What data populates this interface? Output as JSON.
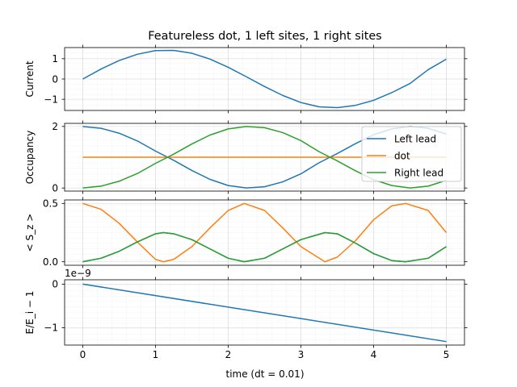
{
  "chart_data": {
    "type": "line",
    "title": "Featureless dot, 1 left sites, 1 right sites",
    "xlabel": "time (dt = 0.01)",
    "xlim": [
      -0.25,
      5.25
    ],
    "xticks": [
      0,
      1,
      2,
      3,
      4,
      5
    ],
    "xtick_labels": [
      "0",
      "1",
      "2",
      "3",
      "4",
      "5"
    ],
    "grid": true,
    "panels": [
      {
        "ylabel": "Current",
        "ylim": [
          -1.55,
          1.55
        ],
        "yticks": [
          -1,
          0,
          1
        ],
        "ytick_labels": [
          "−1",
          "0",
          "1"
        ],
        "series": [
          {
            "color": "#1f77b4",
            "x": [
              0,
              0.25,
              0.5,
              0.75,
              1.0,
              1.25,
              1.5,
              1.75,
              2.0,
              2.25,
              2.5,
              2.75,
              3.0,
              3.25,
              3.5,
              3.75,
              4.0,
              4.25,
              4.5,
              4.75,
              5.0
            ],
            "y": [
              0,
              0.49,
              0.91,
              1.22,
              1.4,
              1.41,
              1.27,
              0.98,
              0.58,
              0.11,
              -0.37,
              -0.81,
              -1.16,
              -1.37,
              -1.41,
              -1.3,
              -1.05,
              -0.67,
              -0.22,
              0.46,
              0.98
            ]
          }
        ]
      },
      {
        "ylabel": "Occupancy",
        "ylim": [
          -0.1,
          2.1
        ],
        "yticks": [
          0,
          2
        ],
        "ytick_labels": [
          "0",
          "2"
        ],
        "legend": "upper right",
        "series": [
          {
            "name": "Left lead",
            "color": "#1f77b4",
            "x": [
              0,
              0.25,
              0.5,
              0.75,
              1.0,
              1.25,
              1.5,
              1.75,
              2.0,
              2.25,
              2.5,
              2.75,
              3.0,
              3.25,
              3.5,
              3.75,
              4.0,
              4.25,
              4.5,
              4.75,
              5.0
            ],
            "y": [
              2.0,
              1.94,
              1.78,
              1.53,
              1.2,
              0.9,
              0.57,
              0.28,
              0.08,
              0.0,
              0.04,
              0.2,
              0.46,
              0.82,
              1.12,
              1.44,
              1.73,
              1.92,
              2.0,
              1.94,
              1.75
            ]
          },
          {
            "name": "dot",
            "color": "#ff7f0e",
            "x": [
              0,
              5.0
            ],
            "y": [
              1.0,
              1.0
            ]
          },
          {
            "name": "Right lead",
            "color": "#2ca02c",
            "x": [
              0,
              0.25,
              0.5,
              0.75,
              1.0,
              1.25,
              1.5,
              1.75,
              2.0,
              2.25,
              2.5,
              2.75,
              3.0,
              3.25,
              3.5,
              3.75,
              4.0,
              4.25,
              4.5,
              4.75,
              5.0
            ],
            "y": [
              0.0,
              0.06,
              0.22,
              0.47,
              0.8,
              1.1,
              1.43,
              1.72,
              1.92,
              2.0,
              1.96,
              1.8,
              1.54,
              1.18,
              0.88,
              0.56,
              0.27,
              0.08,
              0.0,
              0.06,
              0.25
            ]
          }
        ]
      },
      {
        "ylabel": "< S_z >",
        "ylim": [
          -0.03,
          0.53
        ],
        "yticks": [
          0.0,
          0.5
        ],
        "ytick_labels": [
          "0.0",
          "0.5"
        ],
        "series": [
          {
            "color": "#ff7f0e",
            "x": [
              0,
              0.25,
              0.5,
              0.75,
              1.0,
              1.11,
              1.25,
              1.5,
              1.75,
              2.0,
              2.22,
              2.5,
              2.75,
              3.0,
              3.33,
              3.5,
              3.75,
              4.0,
              4.25,
              4.44,
              4.75,
              5.0
            ],
            "y": [
              0.5,
              0.45,
              0.33,
              0.17,
              0.02,
              0.0,
              0.02,
              0.13,
              0.29,
              0.44,
              0.5,
              0.44,
              0.29,
              0.13,
              0.0,
              0.04,
              0.18,
              0.36,
              0.48,
              0.5,
              0.44,
              0.25
            ]
          },
          {
            "color": "#1f77b4",
            "x": [
              0,
              0.25,
              0.5,
              0.75,
              1.0,
              1.11,
              1.25,
              1.5,
              1.75,
              2.0,
              2.22,
              2.5,
              2.75,
              3.0,
              3.33,
              3.5,
              3.75,
              4.0,
              4.25,
              4.44,
              4.75,
              5.0
            ],
            "y": [
              0.0,
              0.03,
              0.09,
              0.17,
              0.24,
              0.25,
              0.24,
              0.19,
              0.11,
              0.03,
              0.0,
              0.03,
              0.11,
              0.19,
              0.25,
              0.24,
              0.16,
              0.07,
              0.01,
              0.0,
              0.03,
              0.13
            ]
          },
          {
            "color": "#2ca02c",
            "x": [
              0,
              0.25,
              0.5,
              0.75,
              1.0,
              1.11,
              1.25,
              1.5,
              1.75,
              2.0,
              2.22,
              2.5,
              2.75,
              3.0,
              3.33,
              3.5,
              3.75,
              4.0,
              4.25,
              4.44,
              4.75,
              5.0
            ],
            "y": [
              0.0,
              0.03,
              0.09,
              0.17,
              0.24,
              0.25,
              0.24,
              0.19,
              0.11,
              0.03,
              0.0,
              0.03,
              0.11,
              0.19,
              0.25,
              0.24,
              0.16,
              0.07,
              0.01,
              0.0,
              0.03,
              0.13
            ]
          }
        ]
      },
      {
        "ylabel": "E/E_i − 1",
        "offset_text": "1e−9",
        "ylim": [
          -1.4,
          0.1
        ],
        "yticks": [
          -1,
          0
        ],
        "ytick_labels": [
          "−1",
          "0"
        ],
        "series": [
          {
            "color": "#1f77b4",
            "x": [
              0,
              5.0
            ],
            "y": [
              0.0,
              -1.32
            ]
          }
        ]
      }
    ]
  }
}
